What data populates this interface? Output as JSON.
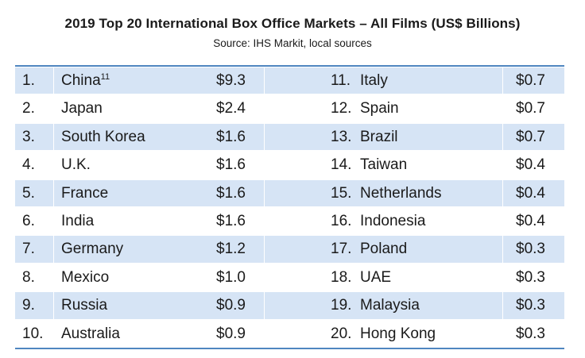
{
  "title": "2019 Top 20 International Box Office Markets – All Films (US$ Billions)",
  "subtitle": "Source: IHS Markit, local sources",
  "colors": {
    "accent_border": "#4f86c0",
    "row_shade": "#d6e4f5"
  },
  "rows": [
    {
      "rank_left": "1.",
      "country_left": "China",
      "footnote_left": "11",
      "value_left": "$9.3",
      "rank_right": "11.",
      "country_right": "Italy",
      "value_right": "$0.7"
    },
    {
      "rank_left": "2.",
      "country_left": "Japan",
      "footnote_left": "",
      "value_left": "$2.4",
      "rank_right": "12.",
      "country_right": "Spain",
      "value_right": "$0.7"
    },
    {
      "rank_left": "3.",
      "country_left": "South Korea",
      "footnote_left": "",
      "value_left": "$1.6",
      "rank_right": "13.",
      "country_right": "Brazil",
      "value_right": "$0.7"
    },
    {
      "rank_left": "4.",
      "country_left": "U.K.",
      "footnote_left": "",
      "value_left": "$1.6",
      "rank_right": "14.",
      "country_right": "Taiwan",
      "value_right": "$0.4"
    },
    {
      "rank_left": "5.",
      "country_left": "France",
      "footnote_left": "",
      "value_left": "$1.6",
      "rank_right": "15.",
      "country_right": "Netherlands",
      "value_right": "$0.4"
    },
    {
      "rank_left": "6.",
      "country_left": "India",
      "footnote_left": "",
      "value_left": "$1.6",
      "rank_right": "16.",
      "country_right": "Indonesia",
      "value_right": "$0.4"
    },
    {
      "rank_left": "7.",
      "country_left": "Germany",
      "footnote_left": "",
      "value_left": "$1.2",
      "rank_right": "17.",
      "country_right": "Poland",
      "value_right": "$0.3"
    },
    {
      "rank_left": "8.",
      "country_left": "Mexico",
      "footnote_left": "",
      "value_left": "$1.0",
      "rank_right": "18.",
      "country_right": "UAE",
      "value_right": "$0.3"
    },
    {
      "rank_left": "9.",
      "country_left": "Russia",
      "footnote_left": "",
      "value_left": "$0.9",
      "rank_right": "19.",
      "country_right": "Malaysia",
      "value_right": "$0.3"
    },
    {
      "rank_left": "10.",
      "country_left": "Australia",
      "footnote_left": "",
      "value_left": "$0.9",
      "rank_right": "20.",
      "country_right": "Hong Kong",
      "value_right": "$0.3"
    }
  ]
}
